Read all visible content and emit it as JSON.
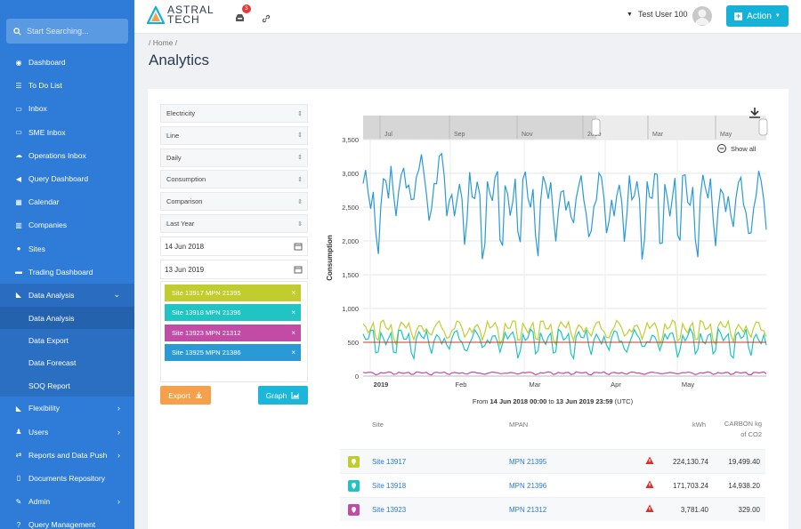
{
  "search": {
    "placeholder": "Start Searching..."
  },
  "sidebar": {
    "items": [
      {
        "label": "Dashboard",
        "icon": "dashboard-icon"
      },
      {
        "label": "To Do List",
        "icon": "list-icon"
      },
      {
        "label": "Inbox",
        "icon": "inbox-icon"
      },
      {
        "label": "SME Inbox",
        "icon": "inbox-icon"
      },
      {
        "label": "Operations Inbox",
        "icon": "cloud-icon"
      },
      {
        "label": "Query Dashboard",
        "icon": "megaphone-icon"
      },
      {
        "label": "Calendar",
        "icon": "calendar-icon"
      },
      {
        "label": "Companies",
        "icon": "building-icon"
      },
      {
        "label": "Sites",
        "icon": "pin-icon"
      },
      {
        "label": "Trading Dashboard",
        "icon": "monitor-icon"
      },
      {
        "label": "Data Analysis",
        "icon": "chart-icon"
      }
    ],
    "subitems": [
      "Data Analysis",
      "Data Export",
      "Data Forecast",
      "SOQ Report"
    ],
    "items2": [
      {
        "label": "Flexibility",
        "icon": "chart-icon"
      },
      {
        "label": "Users",
        "icon": "users-icon"
      },
      {
        "label": "Reports and Data Push",
        "icon": "share-icon"
      },
      {
        "label": "Documents Repository",
        "icon": "file-icon"
      },
      {
        "label": "Admin",
        "icon": "wrench-icon"
      },
      {
        "label": "Query Management",
        "icon": "question-icon"
      }
    ]
  },
  "header": {
    "logo_line1": "ASTRAL",
    "logo_line2": "TECH",
    "notification_count": "3",
    "user_name": "Test User 100",
    "action_label": "Action",
    "accent": "#14b2d8"
  },
  "page": {
    "breadcrumb": "/ Home /",
    "title": "Analytics"
  },
  "controls": {
    "selects": [
      "Electricity",
      "Line",
      "Daily",
      "Consumption",
      "Comparison",
      "Last Year"
    ],
    "date_from": "14 Jun 2018",
    "date_to": "13 Jun 2019",
    "sites": [
      {
        "label": "Site 13917 MPN 21395",
        "color": "#c1cd2e"
      },
      {
        "label": "Site 13918 MPN 21396",
        "color": "#20c4c2"
      },
      {
        "label": "Site 13923 MPN 21312",
        "color": "#c24ba5"
      },
      {
        "label": "Site 13925 MPN 21386",
        "color": "#2a9ad6"
      }
    ],
    "export_label": "Export",
    "graph_label": "Graph"
  },
  "chart_data": {
    "type": "line",
    "ylabel": "Consumption",
    "ylim": [
      0,
      3500
    ],
    "yticks": [
      "0",
      "500",
      "1,000",
      "1,500",
      "2,000",
      "2,500",
      "3,000",
      "3,500"
    ],
    "xticks": [
      "2019",
      "Feb",
      "Mar",
      "Apr",
      "May"
    ],
    "navigator_ticks": [
      "Jul",
      "Sep",
      "Nov",
      "2019",
      "Mar",
      "May"
    ],
    "show_all_label": "Show all",
    "reference_line": 500,
    "series": [
      {
        "color": "#2a9ad6",
        "base": 2400,
        "amp": 900
      },
      {
        "color": "#c1cd2e",
        "base": 650,
        "amp": 250
      },
      {
        "color": "#20c4c2",
        "base": 480,
        "amp": 300
      },
      {
        "color": "#c24ba5",
        "base": 40,
        "amp": 30
      }
    ]
  },
  "range_text": {
    "prefix": "From",
    "from": "14 Jun 2018 00:00",
    "mid": "to",
    "to": "13 Jun 2019 23:59",
    "suffix": "(UTC)"
  },
  "table": {
    "headers": {
      "site": "Site",
      "mpan": "MPAN",
      "kwh": "kWh",
      "carbon1": "CARBON kg",
      "carbon2": "of CO2"
    },
    "rows": [
      {
        "site": "Site 13917",
        "mpan": "MPN 21395",
        "kwh": "224,130.74",
        "carbon": "19,499.40",
        "color": "#c1cd2e"
      },
      {
        "site": "Site 13918",
        "mpan": "MPN 21396",
        "kwh": "171,703.24",
        "carbon": "14,938.20",
        "color": "#20c4c2"
      },
      {
        "site": "Site 13923",
        "mpan": "MPN 21312",
        "kwh": "3,781.40",
        "carbon": "329.00",
        "color": "#c24ba5"
      }
    ]
  }
}
